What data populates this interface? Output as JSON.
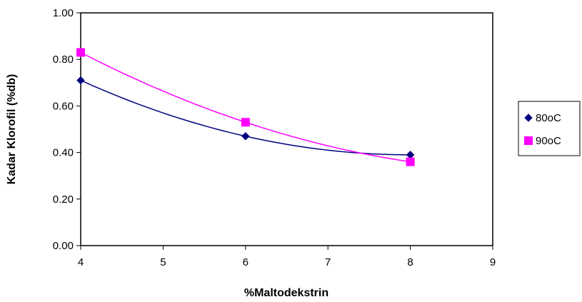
{
  "chart_data": {
    "type": "scatter",
    "title": "",
    "xlabel": "%Maltodekstrin",
    "ylabel": "Kadar Klorofil (%db)",
    "xlim": [
      4,
      9
    ],
    "ylim": [
      0,
      1
    ],
    "x_ticks": [
      "4",
      "5",
      "6",
      "7",
      "8",
      "9"
    ],
    "y_ticks": [
      "0.00",
      "0.20",
      "0.40",
      "0.60",
      "0.80",
      "1.00"
    ],
    "grid": false,
    "trendline": "polynomial (order 2)",
    "legend_position": "right",
    "series": [
      {
        "name": "80oC",
        "color": "#000080",
        "marker": "diamond",
        "x": [
          4,
          6,
          8
        ],
        "y": [
          0.71,
          0.47,
          0.39
        ]
      },
      {
        "name": "90oC",
        "color": "#FF00FF",
        "marker": "square",
        "x": [
          4,
          6,
          8
        ],
        "y": [
          0.83,
          0.53,
          0.36
        ]
      }
    ]
  }
}
